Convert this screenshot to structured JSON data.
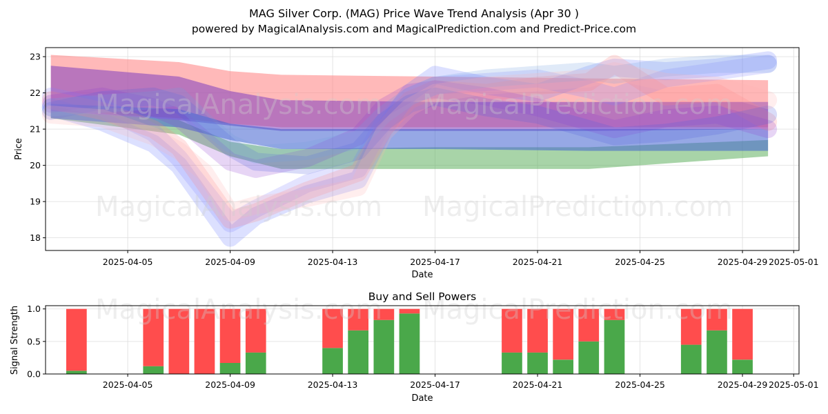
{
  "figure": {
    "title": "MAG Silver Corp. (MAG) Price Wave Trend Analysis (Apr 30 )",
    "subtitle": "powered by MagicalAnalysis.com and MagicalPrediction.com and Predict-Price.com",
    "watermarks": [
      "MagicalAnalysis.com",
      "MagicalPrediction.com"
    ]
  },
  "chart_data": [
    {
      "type": "area",
      "xlabel": "Date",
      "ylabel": "Price",
      "ylim": [
        17.65,
        23.25
      ],
      "yticks": [
        18,
        19,
        20,
        21,
        22,
        23
      ],
      "xlim": [
        "2025-04-01T19:00",
        "2025-05-01T05:00"
      ],
      "xticks": [
        "2025-04-05",
        "2025-04-09",
        "2025-04-13",
        "2025-04-17",
        "2025-04-21",
        "2025-04-25",
        "2025-04-29",
        "2025-05-01"
      ],
      "grid": true,
      "bands": [
        {
          "color": "#ff8080",
          "x": [
            "2025-04-02",
            "2025-04-07",
            "2025-04-09",
            "2025-04-11",
            "2025-04-17",
            "2025-04-23",
            "2025-04-30"
          ],
          "upper": [
            23.05,
            22.85,
            22.6,
            22.5,
            22.45,
            22.4,
            22.35
          ],
          "lower": [
            21.5,
            21.3,
            21.15,
            21.05,
            21.05,
            21.05,
            21.05
          ]
        },
        {
          "color": "#8040c0",
          "x": [
            "2025-04-02",
            "2025-04-07",
            "2025-04-09",
            "2025-04-11",
            "2025-04-17",
            "2025-04-23",
            "2025-04-30"
          ],
          "upper": [
            22.75,
            22.45,
            22.05,
            21.8,
            21.75,
            21.75,
            21.75
          ],
          "lower": [
            21.5,
            21.25,
            21.1,
            20.95,
            20.95,
            20.95,
            21.0
          ]
        },
        {
          "color": "#60b060",
          "x": [
            "2025-04-02",
            "2025-04-07",
            "2025-04-09",
            "2025-04-11",
            "2025-04-17",
            "2025-04-23",
            "2025-04-30"
          ],
          "upper": [
            21.5,
            21.25,
            20.65,
            20.45,
            20.5,
            20.5,
            20.7
          ],
          "lower": [
            21.3,
            20.85,
            20.25,
            19.9,
            19.9,
            19.9,
            20.25
          ]
        },
        {
          "color": "#4060d0",
          "x": [
            "2025-04-02",
            "2025-04-07",
            "2025-04-09",
            "2025-04-11",
            "2025-04-17",
            "2025-04-23",
            "2025-04-30"
          ],
          "upper": [
            21.7,
            21.55,
            21.15,
            21.0,
            21.0,
            21.0,
            21.0
          ],
          "lower": [
            21.3,
            21.05,
            20.7,
            20.45,
            20.45,
            20.4,
            20.4
          ]
        }
      ],
      "waves": [
        {
          "color": "#6070ff",
          "x": [
            "2025-04-02",
            "2025-04-04",
            "2025-04-06",
            "2025-04-07",
            "2025-04-08",
            "2025-04-09",
            "2025-04-10",
            "2025-04-12",
            "2025-04-14",
            "2025-04-15",
            "2025-04-16",
            "2025-04-17",
            "2025-04-19",
            "2025-04-21",
            "2025-04-23",
            "2025-04-24",
            "2025-04-26",
            "2025-04-28",
            "2025-04-30"
          ],
          "y": [
            21.6,
            21.2,
            20.6,
            20.0,
            19.0,
            18.0,
            18.6,
            19.2,
            19.6,
            21.0,
            22.0,
            22.5,
            22.2,
            22.0,
            22.5,
            22.7,
            22.6,
            22.7,
            22.9
          ]
        },
        {
          "color": "#8080ff",
          "x": [
            "2025-04-02",
            "2025-04-04",
            "2025-04-06",
            "2025-04-07",
            "2025-04-08",
            "2025-04-09",
            "2025-04-10",
            "2025-04-12",
            "2025-04-14",
            "2025-04-15",
            "2025-04-16",
            "2025-04-17",
            "2025-04-19",
            "2025-04-21",
            "2025-04-23",
            "2025-04-24",
            "2025-04-26",
            "2025-04-28",
            "2025-04-30"
          ],
          "y": [
            21.9,
            21.6,
            20.9,
            20.2,
            19.3,
            18.4,
            18.8,
            19.5,
            19.9,
            21.2,
            21.9,
            22.2,
            22.3,
            22.4,
            22.1,
            21.9,
            22.4,
            22.6,
            22.8
          ]
        },
        {
          "color": "#ff8080",
          "x": [
            "2025-04-02",
            "2025-04-04",
            "2025-04-06",
            "2025-04-07",
            "2025-04-08",
            "2025-04-09",
            "2025-04-10",
            "2025-04-12",
            "2025-04-14",
            "2025-04-15",
            "2025-04-16",
            "2025-04-17",
            "2025-04-19",
            "2025-04-21",
            "2025-04-23",
            "2025-04-24",
            "2025-04-26",
            "2025-04-28",
            "2025-04-30"
          ],
          "y": [
            21.8,
            21.5,
            21.0,
            20.5,
            19.5,
            18.5,
            18.7,
            19.3,
            19.8,
            21.0,
            21.8,
            22.1,
            22.0,
            22.2,
            22.3,
            22.8,
            21.9,
            22.0,
            21.2
          ]
        },
        {
          "color": "#9040d0",
          "x": [
            "2025-04-02",
            "2025-04-04",
            "2025-04-06",
            "2025-04-07",
            "2025-04-08",
            "2025-04-09",
            "2025-04-10",
            "2025-04-12",
            "2025-04-14",
            "2025-04-15",
            "2025-04-16",
            "2025-04-17",
            "2025-04-19",
            "2025-04-21",
            "2025-04-23",
            "2025-04-24",
            "2025-04-26",
            "2025-04-28",
            "2025-04-30"
          ],
          "y": [
            21.7,
            21.9,
            21.6,
            21.3,
            20.7,
            20.1,
            19.9,
            20.2,
            20.8,
            21.6,
            22.0,
            22.1,
            21.9,
            21.6,
            21.2,
            21.0,
            21.3,
            21.4,
            21.0
          ]
        },
        {
          "color": "#5060e0",
          "x": [
            "2025-04-02",
            "2025-04-04",
            "2025-04-06",
            "2025-04-07",
            "2025-04-08",
            "2025-04-09",
            "2025-04-10",
            "2025-04-12",
            "2025-04-14",
            "2025-04-15",
            "2025-04-16",
            "2025-04-17",
            "2025-04-19",
            "2025-04-21",
            "2025-04-23",
            "2025-04-24",
            "2025-04-26",
            "2025-04-28",
            "2025-04-30"
          ],
          "y": [
            21.5,
            21.8,
            21.9,
            21.7,
            21.1,
            20.5,
            20.1,
            20.0,
            20.4,
            21.2,
            21.7,
            21.9,
            21.6,
            21.4,
            21.0,
            20.8,
            20.9,
            21.1,
            21.4
          ]
        },
        {
          "color": "#70a0e0",
          "x": [
            "2025-04-02",
            "2025-04-04",
            "2025-04-06",
            "2025-04-07",
            "2025-04-08",
            "2025-04-09",
            "2025-04-10",
            "2025-04-12",
            "2025-04-14",
            "2025-04-15",
            "2025-04-16",
            "2025-04-17",
            "2025-04-19",
            "2025-04-21",
            "2025-04-23",
            "2025-04-24",
            "2025-04-26",
            "2025-04-28",
            "2025-04-30"
          ],
          "y": [
            21.6,
            21.7,
            21.8,
            21.9,
            21.2,
            20.6,
            20.3,
            20.4,
            20.7,
            21.4,
            21.9,
            22.2,
            22.4,
            22.5,
            22.6,
            22.5,
            22.7,
            22.8,
            22.8
          ]
        },
        {
          "color": "#ffb0b0",
          "x": [
            "2025-04-02",
            "2025-04-04",
            "2025-04-06",
            "2025-04-07",
            "2025-04-08",
            "2025-04-09",
            "2025-04-10",
            "2025-04-12",
            "2025-04-14",
            "2025-04-15",
            "2025-04-16",
            "2025-04-17",
            "2025-04-19",
            "2025-04-21",
            "2025-04-23",
            "2025-04-24",
            "2025-04-26",
            "2025-04-28",
            "2025-04-30"
          ],
          "y": [
            21.4,
            21.3,
            20.8,
            20.4,
            19.8,
            18.7,
            18.9,
            19.1,
            19.4,
            20.9,
            21.6,
            22.0,
            22.2,
            22.3,
            22.4,
            22.6,
            22.3,
            22.2,
            21.8
          ]
        }
      ]
    },
    {
      "type": "bar",
      "title": "Buy and Sell Powers",
      "xlabel": "Date",
      "ylabel": "Signal Strength",
      "ylim": [
        0,
        1.05
      ],
      "yticks": [
        0.0,
        0.5,
        1.0
      ],
      "xticks": [
        "2025-04-05",
        "2025-04-09",
        "2025-04-13",
        "2025-04-17",
        "2025-04-21",
        "2025-04-25",
        "2025-04-29",
        "2025-05-01"
      ],
      "categories": [
        "2025-04-03",
        "2025-04-06",
        "2025-04-07",
        "2025-04-08",
        "2025-04-09",
        "2025-04-10",
        "2025-04-13",
        "2025-04-14",
        "2025-04-15",
        "2025-04-16",
        "2025-04-20",
        "2025-04-21",
        "2025-04-22",
        "2025-04-23",
        "2025-04-24",
        "2025-04-27",
        "2025-04-28",
        "2025-04-29"
      ],
      "series": [
        {
          "color": "#4aa84a",
          "values": [
            0.05,
            0.12,
            0.0,
            0.0,
            0.17,
            0.33,
            0.4,
            0.67,
            0.83,
            0.93,
            0.33,
            0.33,
            0.22,
            0.5,
            0.83,
            0.45,
            0.67,
            0.22
          ]
        },
        {
          "color": "#ff4d4d",
          "values": [
            0.95,
            0.88,
            1.0,
            1.0,
            0.83,
            0.67,
            0.6,
            0.33,
            0.17,
            0.07,
            0.67,
            0.67,
            0.78,
            0.5,
            0.17,
            0.55,
            0.33,
            0.78
          ]
        }
      ],
      "grid": true
    }
  ]
}
